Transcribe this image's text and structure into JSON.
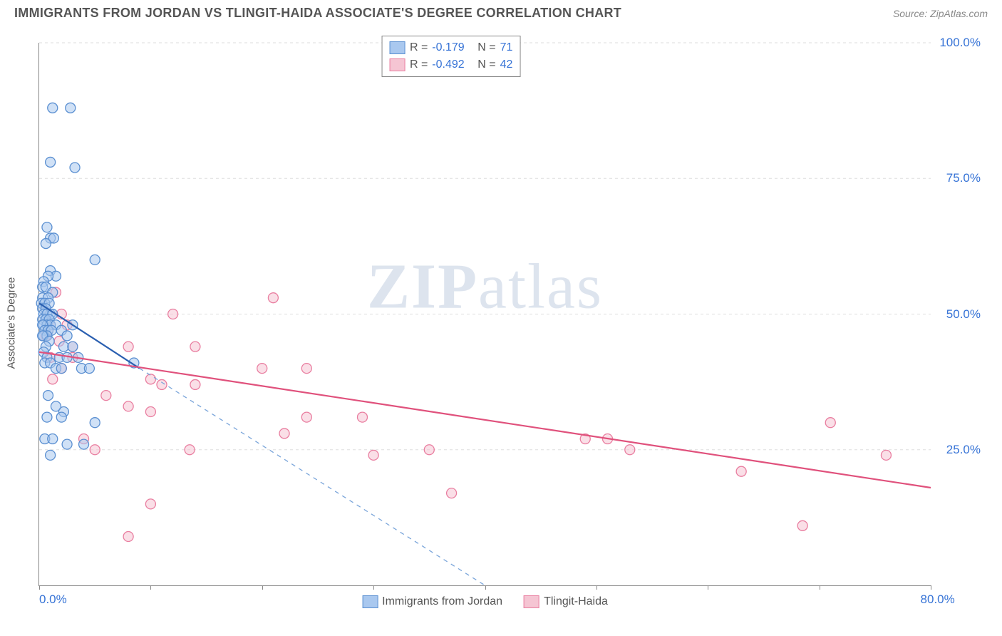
{
  "meta": {
    "title": "IMMIGRANTS FROM JORDAN VS TLINGIT-HAIDA ASSOCIATE'S DEGREE CORRELATION CHART",
    "source": "Source: ZipAtlas.com",
    "watermark_zip": "ZIP",
    "watermark_atlas": "atlas"
  },
  "chart": {
    "type": "scatter",
    "xlim": [
      0,
      80
    ],
    "ylim": [
      0,
      100
    ],
    "xlabel": "",
    "ylabel": "Associate's Degree",
    "x_ticks": [
      0,
      10,
      20,
      30,
      40,
      50,
      60,
      70,
      80
    ],
    "x_tick_labels": {
      "0": "0.0%",
      "80": "80.0%"
    },
    "y_ticks": [
      25,
      50,
      75,
      100
    ],
    "y_tick_labels": {
      "25": "25.0%",
      "50": "50.0%",
      "75": "75.0%",
      "100": "100.0%"
    },
    "grid_color": "#dddddd",
    "axis_color": "#888888",
    "background": "#ffffff",
    "marker_radius": 7,
    "marker_stroke_width": 1.3,
    "series": [
      {
        "name": "Immigrants from Jordan",
        "fill": "#a9c8ef",
        "stroke": "#5a8fd1",
        "fill_opacity": 0.55,
        "R": "-0.179",
        "N": "71",
        "trend": {
          "x1": 0,
          "y1": 52,
          "x2": 9,
          "y2": 40,
          "extend_x2": 40,
          "extend_y2": 0,
          "color": "#2a5fb0",
          "width": 2.2,
          "dash_color": "#7aa5da"
        },
        "points": [
          [
            1.2,
            88
          ],
          [
            2.8,
            88
          ],
          [
            1.0,
            78
          ],
          [
            3.2,
            77
          ],
          [
            0.7,
            66
          ],
          [
            1.0,
            64
          ],
          [
            1.3,
            64
          ],
          [
            0.6,
            63
          ],
          [
            5.0,
            60
          ],
          [
            1.0,
            58
          ],
          [
            1.5,
            57
          ],
          [
            0.8,
            57
          ],
          [
            0.4,
            56
          ],
          [
            0.3,
            55
          ],
          [
            0.6,
            55
          ],
          [
            1.2,
            54
          ],
          [
            0.3,
            53
          ],
          [
            0.8,
            53
          ],
          [
            0.2,
            52
          ],
          [
            0.5,
            52
          ],
          [
            0.9,
            52
          ],
          [
            0.3,
            51
          ],
          [
            0.6,
            51
          ],
          [
            1.0,
            50
          ],
          [
            0.4,
            50
          ],
          [
            0.7,
            50
          ],
          [
            1.2,
            50
          ],
          [
            0.3,
            49
          ],
          [
            0.6,
            49
          ],
          [
            0.9,
            49
          ],
          [
            0.4,
            48
          ],
          [
            0.7,
            48
          ],
          [
            1.0,
            48
          ],
          [
            1.5,
            48
          ],
          [
            0.3,
            48
          ],
          [
            3.0,
            48
          ],
          [
            0.5,
            47
          ],
          [
            0.8,
            47
          ],
          [
            1.1,
            47
          ],
          [
            2.0,
            47
          ],
          [
            0.4,
            46
          ],
          [
            0.7,
            46
          ],
          [
            2.5,
            46
          ],
          [
            0.3,
            46
          ],
          [
            0.9,
            45
          ],
          [
            2.2,
            44
          ],
          [
            0.6,
            44
          ],
          [
            3.0,
            44
          ],
          [
            0.4,
            43
          ],
          [
            1.8,
            42
          ],
          [
            0.7,
            42
          ],
          [
            2.5,
            42
          ],
          [
            3.5,
            42
          ],
          [
            0.5,
            41
          ],
          [
            1.0,
            41
          ],
          [
            1.5,
            40
          ],
          [
            2.0,
            40
          ],
          [
            3.8,
            40
          ],
          [
            4.5,
            40
          ],
          [
            8.5,
            41
          ],
          [
            0.8,
            35
          ],
          [
            1.5,
            33
          ],
          [
            2.2,
            32
          ],
          [
            0.7,
            31
          ],
          [
            2.0,
            31
          ],
          [
            5.0,
            30
          ],
          [
            0.5,
            27
          ],
          [
            1.2,
            27
          ],
          [
            2.5,
            26
          ],
          [
            4.0,
            26
          ],
          [
            1.0,
            24
          ]
        ]
      },
      {
        "name": "Tlingit-Haida",
        "fill": "#f5c5d3",
        "stroke": "#e97ea0",
        "fill_opacity": 0.55,
        "R": "-0.492",
        "N": "42",
        "trend": {
          "x1": 0,
          "y1": 43,
          "x2": 80,
          "y2": 18,
          "color": "#e0517c",
          "width": 2.2
        },
        "points": [
          [
            1.5,
            54
          ],
          [
            2.0,
            50
          ],
          [
            1.0,
            48
          ],
          [
            2.5,
            48
          ],
          [
            0.8,
            47
          ],
          [
            1.8,
            45
          ],
          [
            3.0,
            42
          ],
          [
            8.0,
            44
          ],
          [
            10.0,
            38
          ],
          [
            11.0,
            37
          ],
          [
            21.0,
            53
          ],
          [
            12.0,
            50
          ],
          [
            14.0,
            44
          ],
          [
            20.0,
            40
          ],
          [
            24.0,
            40
          ],
          [
            14.0,
            37
          ],
          [
            10.0,
            32
          ],
          [
            6.0,
            35
          ],
          [
            8.0,
            33
          ],
          [
            13.5,
            25
          ],
          [
            4.0,
            27
          ],
          [
            5.0,
            25
          ],
          [
            24.0,
            31
          ],
          [
            22.0,
            28
          ],
          [
            29.0,
            31
          ],
          [
            30.0,
            24
          ],
          [
            37.0,
            17
          ],
          [
            35.0,
            25
          ],
          [
            49.0,
            27
          ],
          [
            51.0,
            27
          ],
          [
            53.0,
            25
          ],
          [
            63.0,
            21
          ],
          [
            71.0,
            30
          ],
          [
            76.0,
            24
          ],
          [
            68.5,
            11
          ],
          [
            8.0,
            9
          ],
          [
            10.0,
            15
          ],
          [
            1.0,
            42
          ],
          [
            2.0,
            40
          ],
          [
            3.0,
            44
          ],
          [
            0.6,
            46
          ],
          [
            1.2,
            38
          ]
        ]
      }
    ],
    "legend_labels": {
      "R": "R =",
      "N": "N ="
    },
    "bottom_legend": [
      {
        "label": "Immigrants from Jordan",
        "fill": "#a9c8ef",
        "stroke": "#5a8fd1"
      },
      {
        "label": "Tlingit-Haida",
        "fill": "#f5c5d3",
        "stroke": "#e97ea0"
      }
    ]
  }
}
